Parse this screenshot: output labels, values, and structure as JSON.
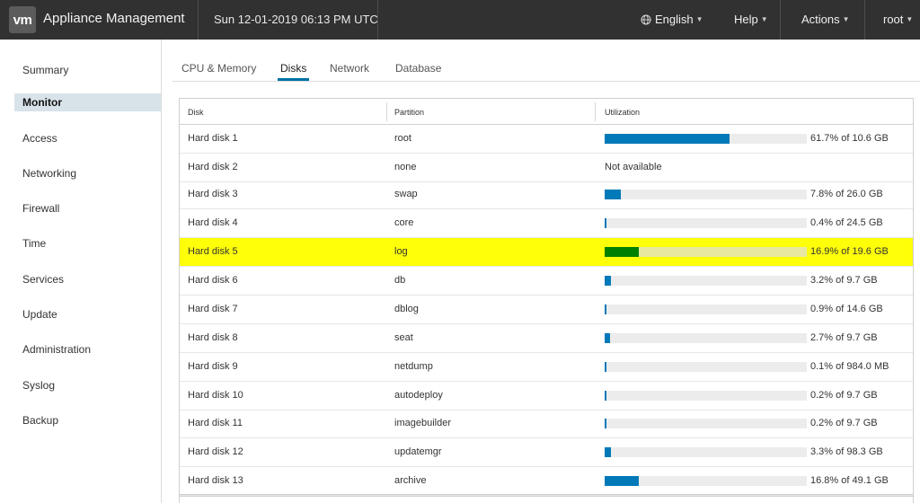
{
  "header": {
    "logo": "vm",
    "title": "Appliance Management",
    "datetime": "Sun 12-01-2019 06:13 PM UTC",
    "menus": [
      {
        "label": "English",
        "icon": "globe-icon"
      },
      {
        "label": "Help"
      },
      {
        "label": "Actions"
      },
      {
        "label": "root"
      }
    ]
  },
  "sidebar": {
    "items": [
      {
        "label": "Summary",
        "active": false
      },
      {
        "label": "Monitor",
        "active": true
      },
      {
        "label": "Access",
        "active": false
      },
      {
        "label": "Networking",
        "active": false
      },
      {
        "label": "Firewall",
        "active": false
      },
      {
        "label": "Time",
        "active": false
      },
      {
        "label": "Services",
        "active": false
      },
      {
        "label": "Update",
        "active": false
      },
      {
        "label": "Administration",
        "active": false
      },
      {
        "label": "Syslog",
        "active": false
      },
      {
        "label": "Backup",
        "active": false
      }
    ]
  },
  "tabs": [
    {
      "label": "CPU & Memory",
      "active": false
    },
    {
      "label": "Disks",
      "active": true
    },
    {
      "label": "Network",
      "active": false
    },
    {
      "label": "Database",
      "active": false
    }
  ],
  "table": {
    "columns": [
      "Disk",
      "Partition",
      "Utilization"
    ],
    "colors": {
      "normal": "#0079b8",
      "highlight": "#008000",
      "highlight_bg": "#ffff0a"
    },
    "rows": [
      {
        "disk": "Hard disk 1",
        "partition": "root",
        "percent": 61.7,
        "text": "61.7% of 10.6 GB",
        "highlight": false
      },
      {
        "disk": "Hard disk 2",
        "partition": "none",
        "percent": null,
        "text": "Not available",
        "highlight": false
      },
      {
        "disk": "Hard disk 3",
        "partition": "swap",
        "percent": 7.8,
        "text": "7.8% of 26.0 GB",
        "highlight": false
      },
      {
        "disk": "Hard disk 4",
        "partition": "core",
        "percent": 0.4,
        "text": "0.4% of 24.5 GB",
        "highlight": false
      },
      {
        "disk": "Hard disk 5",
        "partition": "log",
        "percent": 16.9,
        "text": "16.9% of 19.6 GB",
        "highlight": true
      },
      {
        "disk": "Hard disk 6",
        "partition": "db",
        "percent": 3.2,
        "text": "3.2% of 9.7 GB",
        "highlight": false
      },
      {
        "disk": "Hard disk 7",
        "partition": "dblog",
        "percent": 0.9,
        "text": "0.9% of 14.6 GB",
        "highlight": false
      },
      {
        "disk": "Hard disk 8",
        "partition": "seat",
        "percent": 2.7,
        "text": "2.7% of 9.7 GB",
        "highlight": false
      },
      {
        "disk": "Hard disk 9",
        "partition": "netdump",
        "percent": 0.1,
        "text": "0.1% of 984.0 MB",
        "highlight": false
      },
      {
        "disk": "Hard disk 10",
        "partition": "autodeploy",
        "percent": 0.2,
        "text": "0.2% of 9.7 GB",
        "highlight": false
      },
      {
        "disk": "Hard disk 11",
        "partition": "imagebuilder",
        "percent": 0.2,
        "text": "0.2% of 9.7 GB",
        "highlight": false
      },
      {
        "disk": "Hard disk 12",
        "partition": "updatemgr",
        "percent": 3.3,
        "text": "3.3% of 98.3 GB",
        "highlight": false
      },
      {
        "disk": "Hard disk 13",
        "partition": "archive",
        "percent": 16.8,
        "text": "16.8% of 49.1 GB",
        "highlight": false
      }
    ]
  }
}
